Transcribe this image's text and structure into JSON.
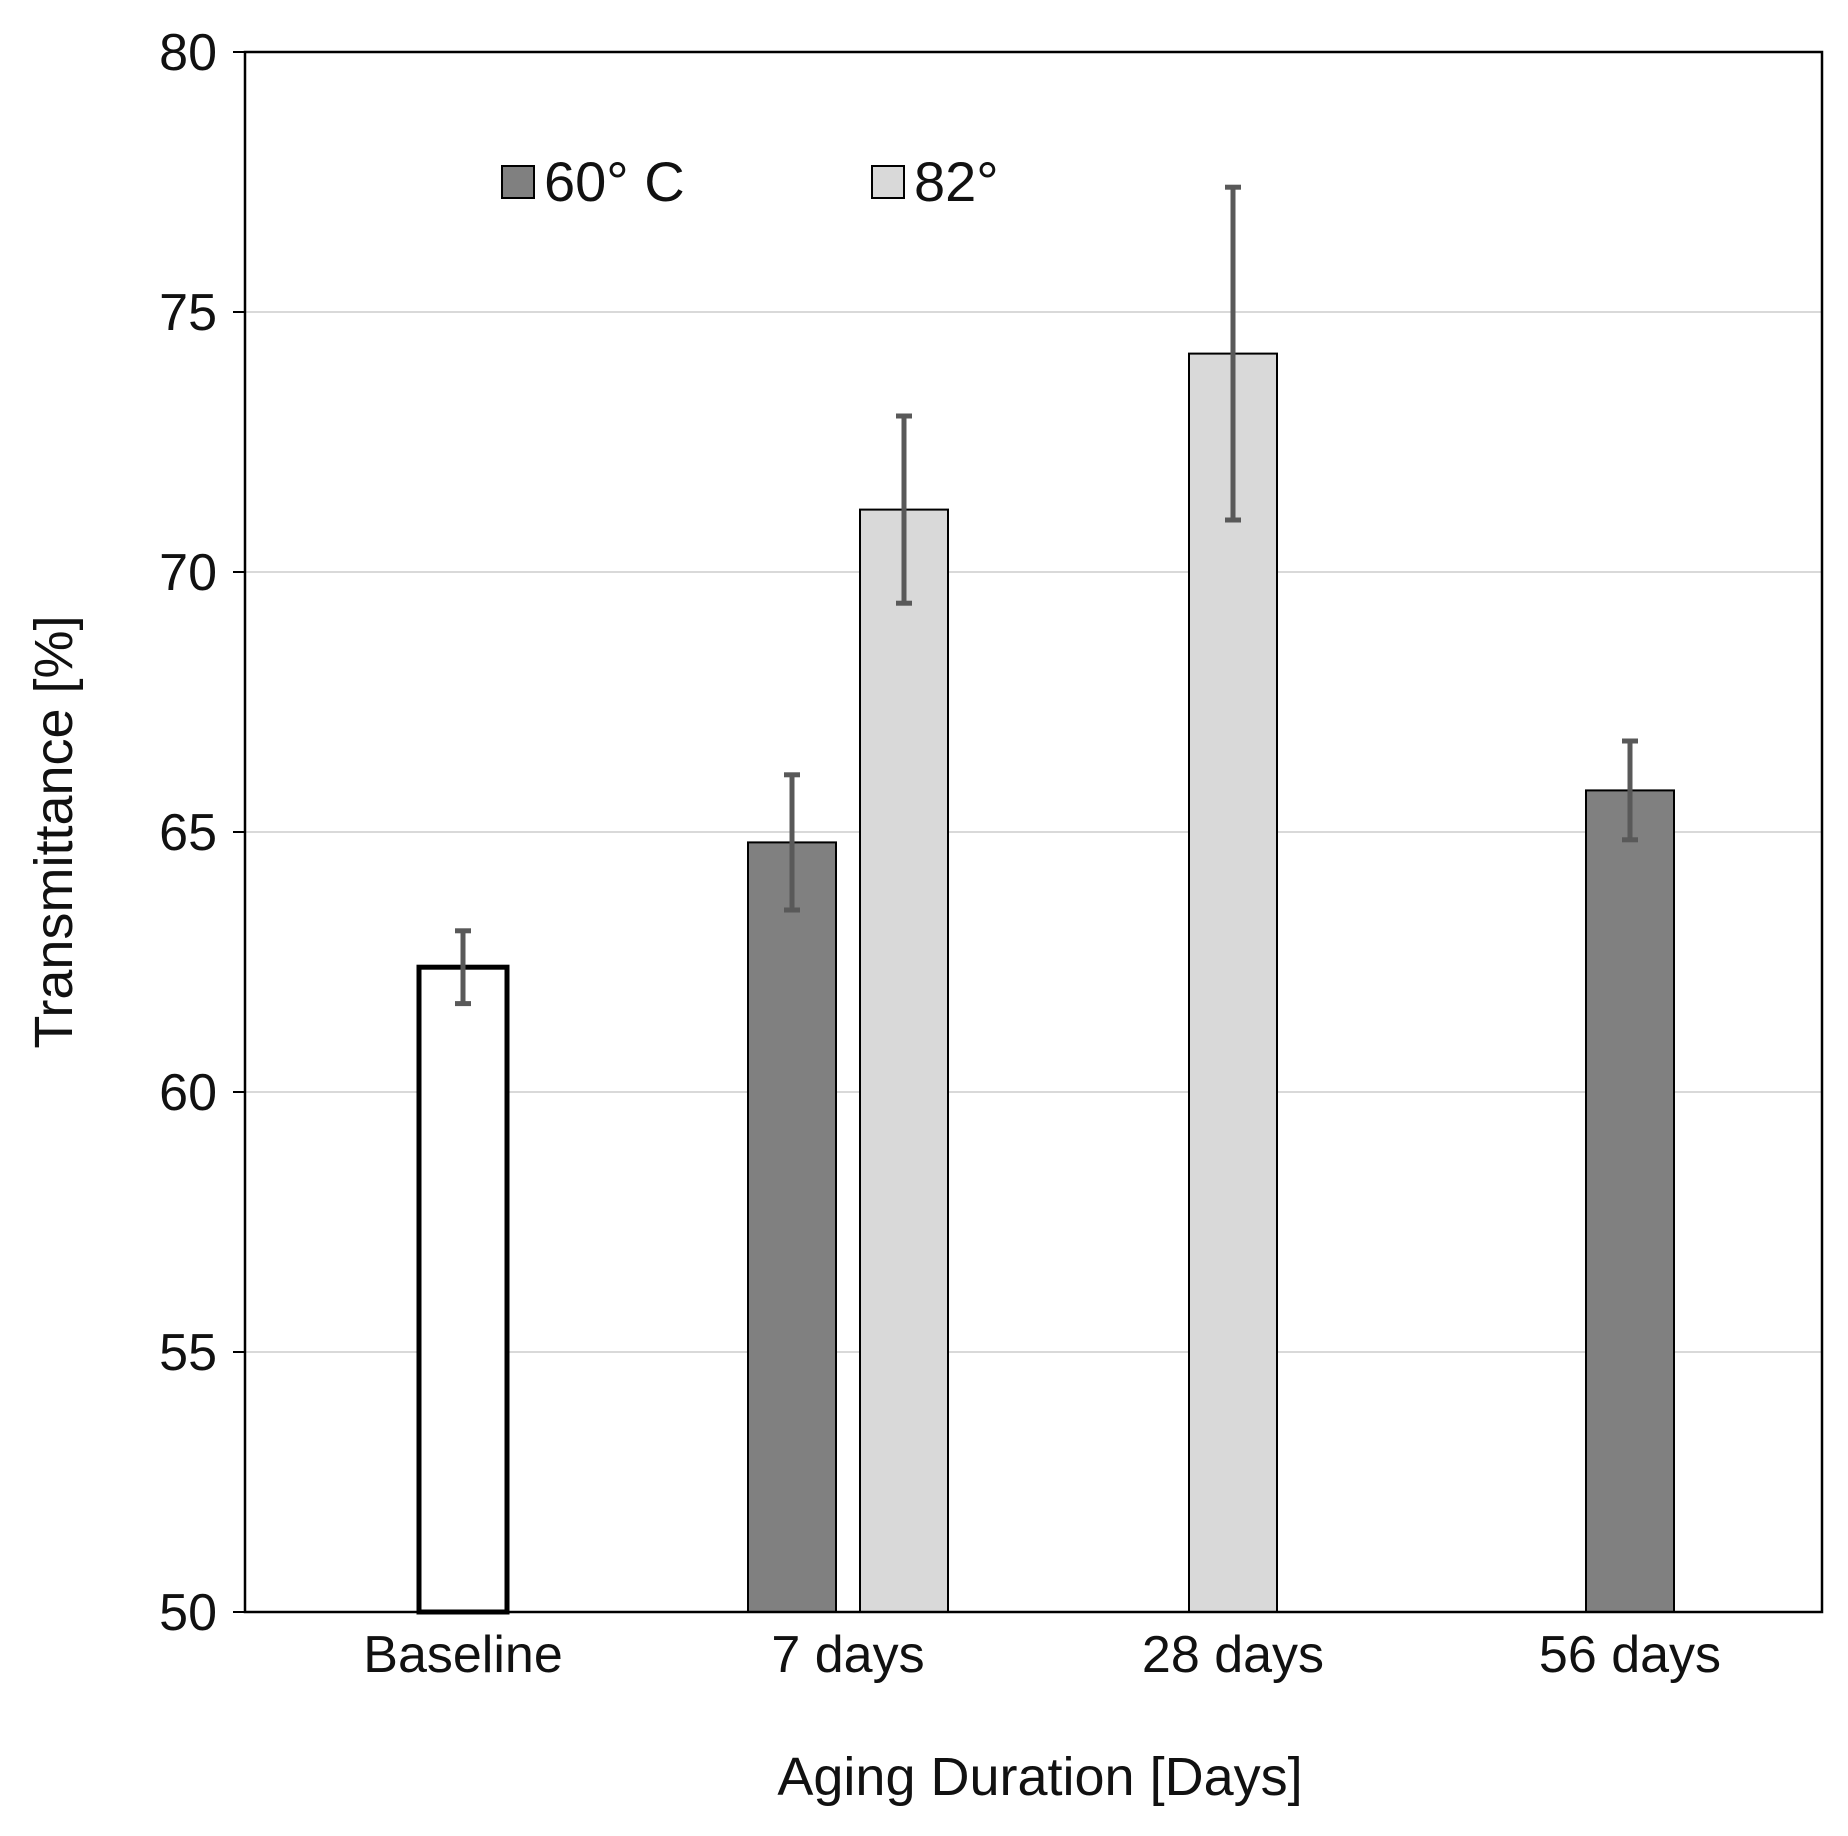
{
  "chart_data": {
    "type": "bar",
    "title": "",
    "xlabel": "Aging Duration [Days]",
    "ylabel": "Transmittance [%]",
    "ylim": [
      50,
      80
    ],
    "yticks": [
      50,
      55,
      60,
      65,
      70,
      75,
      80
    ],
    "categories": [
      "Baseline",
      "7 days",
      "28 days",
      "56 days"
    ],
    "grid": true,
    "legend_position": "top-left",
    "series": [
      {
        "name": "Baseline",
        "key": "baseline",
        "color": "#ffffff",
        "show_in_legend": false,
        "values": [
          62.4,
          null,
          null,
          null
        ],
        "errors": [
          0.7,
          null,
          null,
          null
        ]
      },
      {
        "name": "60° C",
        "key": "s60",
        "color": "#808080",
        "show_in_legend": true,
        "values": [
          null,
          64.8,
          null,
          65.8
        ],
        "errors": [
          null,
          1.3,
          null,
          0.95
        ]
      },
      {
        "name": "82°",
        "key": "s82",
        "color": "#d9d9d9",
        "show_in_legend": true,
        "values": [
          null,
          71.2,
          74.2,
          null
        ],
        "errors": [
          null,
          1.8,
          3.2,
          null
        ]
      }
    ]
  }
}
